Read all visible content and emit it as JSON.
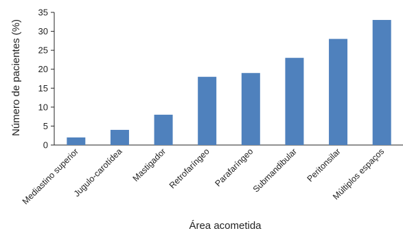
{
  "chart_data": {
    "type": "bar",
    "xlabel": "Área acometida",
    "ylabel": "Número de pacientes (%)",
    "categories": [
      "Mediastino superior",
      "Jugulo-carotídea",
      "Mastigador",
      "Retrofaríngeo",
      "Parafaríngeo",
      "Submandibular",
      "Peritonsilar",
      "Múltiplos espaços"
    ],
    "values": [
      2,
      4,
      8,
      18,
      19,
      23,
      28,
      33
    ],
    "ylim": [
      0,
      35
    ],
    "yticks": [
      0,
      5,
      10,
      15,
      20,
      25,
      30,
      35
    ],
    "grid": false,
    "legend": "none",
    "bar_color": "#4f81bd"
  }
}
